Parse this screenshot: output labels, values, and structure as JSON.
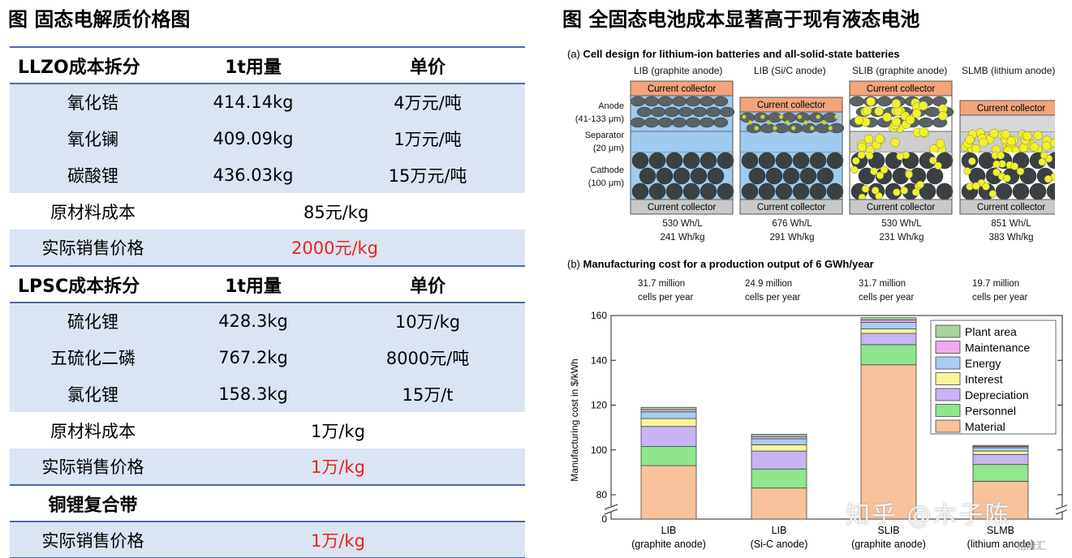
{
  "left": {
    "title": "图 固态电解质价格图",
    "sections": [
      {
        "header": [
          "LLZO成本拆分",
          "1t用量",
          "单价"
        ],
        "rows": [
          {
            "name": "氧化锆",
            "qty": "414.14kg",
            "price": "4万元/吨"
          },
          {
            "name": "氧化镧",
            "qty": "409.09kg",
            "price": "1万元/吨"
          },
          {
            "name": "碳酸锂",
            "qty": "436.03kg",
            "price": "15万元/吨"
          }
        ],
        "raw_label": "原材料成本",
        "raw_value": "85元/kg",
        "sale_label": "实际销售价格",
        "sale_value": "2000元/kg"
      },
      {
        "header": [
          "LPSC成本拆分",
          "1t用量",
          "单价"
        ],
        "rows": [
          {
            "name": "硫化锂",
            "qty": "428.3kg",
            "price": "10万/kg"
          },
          {
            "name": "五硫化二磷",
            "qty": "767.2kg",
            "price": "8000元/吨"
          },
          {
            "name": "氯化锂",
            "qty": "158.3kg",
            "price": "15万/t"
          }
        ],
        "raw_label": "原材料成本",
        "raw_value": "1万/kg",
        "sale_label": "实际销售价格",
        "sale_value": "1万/kg"
      }
    ],
    "copper": {
      "header": "铜锂复合带",
      "sale_label": "实际销售价格",
      "sale_value": "1万/kg"
    }
  },
  "right": {
    "title": "图 全固态电池成本显著高于现有液态电池",
    "panel_a": {
      "label": "(a)",
      "title": "Cell design for lithium-ion batteries and all-solid-state batteries",
      "designs": [
        "LIB (graphite anode)",
        "LIB (Si/C anode)",
        "SLIB (graphite anode)",
        "SLMB (lithium anode)"
      ],
      "row_labels": {
        "anode": "Anode",
        "anode_size": "(41-133 μm)",
        "separator": "Separator",
        "separator_size": "(20 μm)",
        "cathode": "Cathode",
        "cathode_size": "(100 μm)"
      },
      "collector": "Current collector",
      "energy": [
        {
          "vol": "530 Wh/L",
          "grav": "241 Wh/kg"
        },
        {
          "vol": "676 Wh/L",
          "grav": "291 Wh/kg"
        },
        {
          "vol": "530 Wh/L",
          "grav": "231 Wh/kg"
        },
        {
          "vol": "851 Wh/L",
          "grav": "383 Wh/kg"
        }
      ],
      "colors": {
        "collector_top": "#f3a47a",
        "collector_bottom": "#c9c9c9",
        "electrolyte": "#9ecbf0",
        "particle": "#5a6366",
        "particle_li": "#f2f227"
      }
    },
    "panel_b": {
      "label": "(b)",
      "title": "Manufacturing cost for a production output of 6 GWh/year",
      "cells_notes": [
        {
          "l1": "31.7 million",
          "l2": "cells per year"
        },
        {
          "l1": "24.9 million",
          "l2": "cells per year"
        },
        {
          "l1": "31.7 million",
          "l2": "cells per year"
        },
        {
          "l1": "19.7 million",
          "l2": "cells per year"
        }
      ]
    }
  },
  "chart_data": {
    "type": "bar",
    "stacked": true,
    "categories": [
      {
        "l1": "LIB",
        "l2": "(graphite anode)"
      },
      {
        "l1": "LIB",
        "l2": "(Si-C anode)"
      },
      {
        "l1": "SLIB",
        "l2": "(graphite anode)"
      },
      {
        "l1": "SLMB",
        "l2": "(lithium anode)"
      }
    ],
    "ylabel": "Manufacturing cost in $/kWh",
    "ylim": [
      70,
      160
    ],
    "yticks": [
      0,
      80,
      100,
      120,
      140,
      160
    ],
    "axis_break": true,
    "series": [
      {
        "name": "Material",
        "color": "#f8c39b",
        "values": [
          93,
          83,
          138,
          86
        ]
      },
      {
        "name": "Personnel",
        "color": "#8fe68c",
        "values": [
          8.5,
          8.5,
          9,
          7.5
        ]
      },
      {
        "name": "Depreciation",
        "color": "#c8b3f3",
        "values": [
          9,
          8,
          5,
          4.5
        ]
      },
      {
        "name": "Interest",
        "color": "#f9f59a",
        "values": [
          3.5,
          2.8,
          2,
          1.5
        ]
      },
      {
        "name": "Energy",
        "color": "#a9cdf2",
        "values": [
          3,
          2.7,
          3,
          1.5
        ]
      },
      {
        "name": "Maintenance",
        "color": "#f2a9f2",
        "values": [
          1,
          1,
          1,
          0.6
        ]
      },
      {
        "name": "Plant area",
        "color": "#a6d49b",
        "values": [
          1,
          1,
          1,
          0.4
        ]
      }
    ],
    "legend_position": "top-right"
  },
  "watermark": {
    "text": "知乎 @木子陈",
    "corner": "格隆汇"
  }
}
